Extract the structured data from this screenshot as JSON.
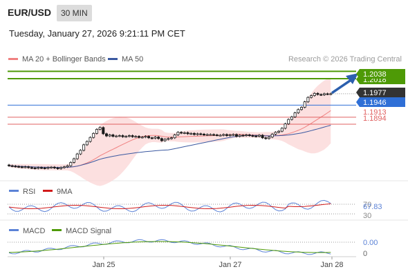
{
  "header": {
    "pair": "EUR/USD",
    "timeframe": "30 MIN",
    "timestamp": "Tuesday, January 27, 2026 9:21:11 PM CET"
  },
  "legend": {
    "ma20": "MA 20 + Bollinger Bands",
    "ma50": "MA 50",
    "credit": "Research © 2026 Trading Central"
  },
  "colors": {
    "green_level": "#4e9a06",
    "blue_level": "#2f6fd6",
    "red_level": "#e06060",
    "ma20": "#f08080",
    "ma50": "#3a58a0",
    "band_fill": "#fbd5d5",
    "candle": "#1a1a1a",
    "rsi": "#5b82d6",
    "rsi_ma": "#d11a1a",
    "macd": "#5b82d6",
    "macd_signal": "#4e9a06",
    "arrow": "#2b5fae"
  },
  "chart_data": [
    {
      "type": "candlestick",
      "x_ticks": [
        "Jan 25",
        "Jan 27",
        "Jan 28"
      ],
      "levels": [
        {
          "value": 1.2038,
          "label": "1.2038",
          "kind": "resistance",
          "color": "#4e9a06"
        },
        {
          "value": 1.2018,
          "label": "1.2018",
          "kind": "resistance",
          "color": "#4e9a06"
        },
        {
          "value": 1.1977,
          "label": "1.1977",
          "kind": "last",
          "color": "#333333"
        },
        {
          "value": 1.1946,
          "label": "1.1946",
          "kind": "pivot",
          "color": "#2f6fd6"
        },
        {
          "value": 1.1913,
          "label": "1.1913",
          "kind": "support",
          "color": "#e06060"
        },
        {
          "value": 1.1894,
          "label": "1.1894",
          "kind": "support",
          "color": "#e06060"
        }
      ],
      "close": [
        1.1781,
        1.178,
        1.1779,
        1.1778,
        1.1777,
        1.1778,
        1.1776,
        1.1775,
        1.1774,
        1.1776,
        1.1775,
        1.1774,
        1.1776,
        1.1777,
        1.1775,
        1.1773,
        1.1776,
        1.1778,
        1.1781,
        1.179,
        1.18,
        1.1813,
        1.1823,
        1.1838,
        1.1847,
        1.1858,
        1.1869,
        1.188,
        1.1885,
        1.1868,
        1.1862,
        1.1865,
        1.1861,
        1.1862,
        1.1863,
        1.186,
        1.1861,
        1.1863,
        1.186,
        1.1861,
        1.1858,
        1.1859,
        1.1861,
        1.1857,
        1.1856,
        1.1859,
        1.1855,
        1.1849,
        1.1853,
        1.1855,
        1.1857,
        1.1865,
        1.1872,
        1.187,
        1.1871,
        1.1868,
        1.1869,
        1.1866,
        1.1868,
        1.1867,
        1.1865,
        1.1866,
        1.1866,
        1.1865,
        1.1864,
        1.1864,
        1.1866,
        1.1863,
        1.1865,
        1.1866,
        1.1861,
        1.1864,
        1.1863,
        1.1865,
        1.1863,
        1.1862,
        1.1861,
        1.1864,
        1.1857,
        1.1855,
        1.1859,
        1.1867,
        1.1872,
        1.1875,
        1.1883,
        1.1895,
        1.1907,
        1.1914,
        1.1925,
        1.1934,
        1.194,
        1.1955,
        1.1967,
        1.1972,
        1.1978,
        1.1975,
        1.1974,
        1.1977,
        1.1976,
        1.1977
      ],
      "rsi": {
        "series": [
          "RSI",
          "9MA"
        ],
        "last": "67.83",
        "scale_labels": [
          "70",
          "67.83",
          "30"
        ]
      },
      "macd": {
        "series": [
          "MACD",
          "MACD Signal"
        ],
        "last": "0.00",
        "scale_labels": [
          "0.00",
          "0"
        ]
      }
    }
  ]
}
